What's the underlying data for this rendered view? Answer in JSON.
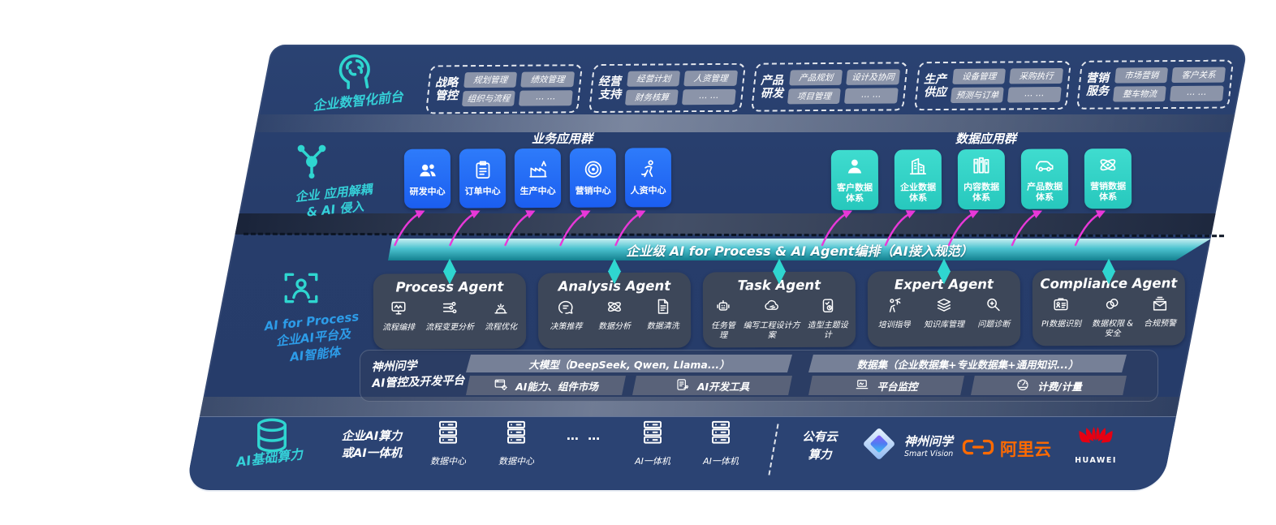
{
  "colors": {
    "navy": "#273D6B",
    "accent_teal": "#2FD6D0",
    "app_blue": "#1C66F2",
    "data_teal": "#2ECFC4",
    "magenta": "#E838D8",
    "chip_gray": "#8B94A9",
    "alibaba_orange": "#FF6A00",
    "huawei_red": "#E60012",
    "process_label_blue": "#2D9CE8"
  },
  "front_layer": {
    "label": "企业数智化前台",
    "icon": "head-brain-icon",
    "groups": [
      {
        "title": "战略\n管控",
        "items": [
          "规划管理",
          "绩效管理",
          "组织与流程",
          "… …"
        ]
      },
      {
        "title": "经营\n支持",
        "items": [
          "经营计划",
          "人资管理",
          "财务核算",
          "… …"
        ]
      },
      {
        "title": "产品\n研发",
        "items": [
          "产品规划",
          "设计及协同",
          "项目管理",
          "… …"
        ]
      },
      {
        "title": "生产\n供应",
        "items": [
          "设备管理",
          "采购执行",
          "预测与订单",
          "… …"
        ]
      },
      {
        "title": "营销\n服务",
        "items": [
          "市场营销",
          "客户关系",
          "整车物流",
          "… …"
        ]
      }
    ]
  },
  "app_layer": {
    "label": "企业 应用解耦\n& AI 侵入",
    "icon": "molecule-icon",
    "business_group_title": "业务应用群",
    "business_apps": [
      {
        "label": "研发中心",
        "icon": "users-icon"
      },
      {
        "label": "订单中心",
        "icon": "clipboard-icon"
      },
      {
        "label": "生产中心",
        "icon": "factory-icon"
      },
      {
        "label": "营销中心",
        "icon": "target-icon"
      },
      {
        "label": "人资中心",
        "icon": "person-run-icon"
      }
    ],
    "data_group_title": "数据应用群",
    "data_apps": [
      {
        "label": "客户数据\n体系",
        "icon": "person-icon"
      },
      {
        "label": "企业数据\n体系",
        "icon": "building-icon"
      },
      {
        "label": "内容数据\n体系",
        "icon": "columns-icon"
      },
      {
        "label": "产品数据\n体系",
        "icon": "car-icon"
      },
      {
        "label": "营销数据\n体系",
        "icon": "atom-icon"
      }
    ]
  },
  "orchestration_bar": {
    "label": "企业级 AI for Process & AI Agent编排（AI接入规范）"
  },
  "process_layer": {
    "label": "AI for Process\n企业AI平台及\nAI智能体",
    "icon": "scan-person-icon",
    "agents": [
      {
        "title": "Process Agent",
        "capabilities": [
          {
            "label": "流程编排",
            "icon": "monitor-wave-icon"
          },
          {
            "label": "流程变更分析",
            "icon": "flow-sliders-icon"
          },
          {
            "label": "流程优化",
            "icon": "optimize-icon"
          }
        ]
      },
      {
        "title": "Analysis Agent",
        "capabilities": [
          {
            "label": "决策推荐",
            "icon": "decision-chat-icon"
          },
          {
            "label": "数据分析",
            "icon": "atom-icon"
          },
          {
            "label": "数据清洗",
            "icon": "clean-doc-icon"
          }
        ]
      },
      {
        "title": "Task Agent",
        "capabilities": [
          {
            "label": "任务管理",
            "icon": "robot-task-icon"
          },
          {
            "label": "编写工程设计方案",
            "icon": "cloud-edit-icon"
          },
          {
            "label": "造型主题设计",
            "icon": "design-check-icon"
          }
        ]
      },
      {
        "title": "Expert Agent",
        "capabilities": [
          {
            "label": "培训指导",
            "icon": "training-icon"
          },
          {
            "label": "知识库管理",
            "icon": "layers-icon"
          },
          {
            "label": "问题诊断",
            "icon": "diagnose-icon"
          }
        ]
      },
      {
        "title": "Compliance Agent",
        "capabilities": [
          {
            "label": "PI数据识别",
            "icon": "id-card-icon"
          },
          {
            "label": "数据权限 &\n安全",
            "icon": "link-circles-icon"
          },
          {
            "label": "合规预警",
            "icon": "alert-mail-icon"
          }
        ]
      }
    ],
    "platform": {
      "label": "神州问学\nAI管控及开发平台",
      "model_bar": "大模型（DeepSeek, Qwen, Llama...）",
      "model_tools": [
        {
          "label": "AI能力、组件市场",
          "icon": "window-gear-icon"
        },
        {
          "label": "AI开发工具",
          "icon": "doc-tool-icon"
        }
      ],
      "dataset_bar": "数据集（企业数据集+专业数据集+通用知识...）",
      "dataset_tools": [
        {
          "label": "平台监控",
          "icon": "laptop-icon"
        },
        {
          "label": "计费/计量",
          "icon": "gauge-icon"
        }
      ]
    }
  },
  "compute_layer": {
    "label": "AI基础算力",
    "icon": "database-icon",
    "left_title": "企业AI算力\n或AI一体机",
    "nodes": [
      {
        "label": "数据中心",
        "icon": "server-icon"
      },
      {
        "label": "数据中心",
        "icon": "server-icon"
      },
      {
        "label": "",
        "icon": "ellipsis-icon"
      },
      {
        "label": "AI一体机",
        "icon": "server-icon"
      },
      {
        "label": "AI一体机",
        "icon": "server-icon"
      }
    ],
    "public_cloud": "公有云\n算力",
    "vendors": {
      "smartvision": {
        "name": "神州问学",
        "sub": "Smart Vision"
      },
      "alibaba": {
        "name": "阿里云"
      },
      "huawei": {
        "name": "HUAWEI"
      }
    }
  }
}
